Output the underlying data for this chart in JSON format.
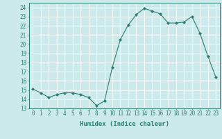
{
  "x": [
    0,
    1,
    2,
    3,
    4,
    5,
    6,
    7,
    8,
    9,
    10,
    11,
    12,
    13,
    14,
    15,
    16,
    17,
    18,
    19,
    20,
    21,
    22,
    23
  ],
  "y": [
    15.1,
    14.7,
    14.2,
    14.5,
    14.7,
    14.7,
    14.5,
    14.2,
    13.3,
    13.8,
    17.5,
    20.5,
    22.1,
    23.2,
    23.9,
    23.6,
    23.3,
    22.3,
    22.3,
    22.4,
    23.0,
    21.2,
    18.7,
    16.4
  ],
  "line_color": "#2e7d6e",
  "marker": "D",
  "marker_size": 2.0,
  "xlabel": "Humidex (Indice chaleur)",
  "xlim": [
    -0.5,
    23.5
  ],
  "ylim": [
    13,
    24.5
  ],
  "yticks": [
    13,
    14,
    15,
    16,
    17,
    18,
    19,
    20,
    21,
    22,
    23,
    24
  ],
  "xticks": [
    0,
    1,
    2,
    3,
    4,
    5,
    6,
    7,
    8,
    9,
    10,
    11,
    12,
    13,
    14,
    15,
    16,
    17,
    18,
    19,
    20,
    21,
    22,
    23
  ],
  "bg_color": "#cce9eb",
  "grid_color": "#ffffff",
  "label_fontsize": 6.5,
  "tick_fontsize": 5.5
}
